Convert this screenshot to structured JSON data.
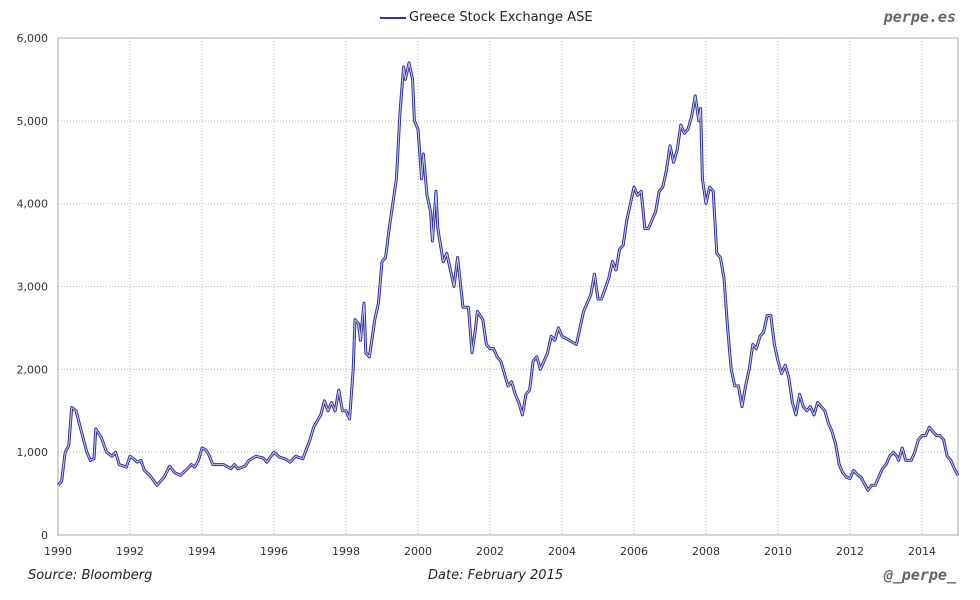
{
  "brand": "perpe.es",
  "handle": "@_perpe_",
  "source": "Source: Bloomberg",
  "date": "Date: February 2015",
  "chart_data": {
    "type": "line",
    "title": "",
    "xlabel": "",
    "ylabel": "",
    "xlim": [
      1990,
      2015
    ],
    "ylim": [
      0,
      6000
    ],
    "grid": true,
    "legend_position": "top-center",
    "x_ticks": [
      "1990",
      "1992",
      "1994",
      "1996",
      "1998",
      "2000",
      "2002",
      "2004",
      "2006",
      "2008",
      "2010",
      "2012",
      "2014"
    ],
    "y_ticks": [
      "0",
      "1,000",
      "2,000",
      "3,000",
      "4,000",
      "5,000",
      "6,000"
    ],
    "series": [
      {
        "name": "Greece Stock Exchange ASE",
        "color": "#33339a",
        "points": [
          [
            1990.0,
            600
          ],
          [
            1990.1,
            650
          ],
          [
            1990.2,
            1000
          ],
          [
            1990.3,
            1080
          ],
          [
            1990.38,
            1540
          ],
          [
            1990.5,
            1500
          ],
          [
            1990.65,
            1250
          ],
          [
            1990.8,
            1000
          ],
          [
            1990.9,
            900
          ],
          [
            1991.0,
            920
          ],
          [
            1991.05,
            1280
          ],
          [
            1991.2,
            1180
          ],
          [
            1991.35,
            1000
          ],
          [
            1991.5,
            950
          ],
          [
            1991.6,
            1000
          ],
          [
            1991.7,
            850
          ],
          [
            1991.9,
            820
          ],
          [
            1992.0,
            950
          ],
          [
            1992.1,
            920
          ],
          [
            1992.2,
            880
          ],
          [
            1992.3,
            900
          ],
          [
            1992.4,
            780
          ],
          [
            1992.55,
            720
          ],
          [
            1992.75,
            600
          ],
          [
            1992.95,
            700
          ],
          [
            1993.1,
            830
          ],
          [
            1993.25,
            750
          ],
          [
            1993.4,
            720
          ],
          [
            1993.6,
            800
          ],
          [
            1993.7,
            850
          ],
          [
            1993.8,
            820
          ],
          [
            1993.9,
            900
          ],
          [
            1994.0,
            1050
          ],
          [
            1994.1,
            1030
          ],
          [
            1994.2,
            960
          ],
          [
            1994.3,
            850
          ],
          [
            1994.6,
            850
          ],
          [
            1994.8,
            800
          ],
          [
            1994.9,
            850
          ],
          [
            1995.0,
            800
          ],
          [
            1995.2,
            830
          ],
          [
            1995.3,
            900
          ],
          [
            1995.5,
            950
          ],
          [
            1995.7,
            930
          ],
          [
            1995.8,
            880
          ],
          [
            1996.0,
            1000
          ],
          [
            1996.15,
            940
          ],
          [
            1996.3,
            920
          ],
          [
            1996.45,
            880
          ],
          [
            1996.6,
            950
          ],
          [
            1996.8,
            920
          ],
          [
            1997.0,
            1150
          ],
          [
            1997.1,
            1300
          ],
          [
            1997.3,
            1450
          ],
          [
            1997.4,
            1620
          ],
          [
            1997.5,
            1500
          ],
          [
            1997.6,
            1600
          ],
          [
            1997.7,
            1500
          ],
          [
            1997.8,
            1750
          ],
          [
            1997.9,
            1500
          ],
          [
            1998.0,
            1500
          ],
          [
            1998.1,
            1400
          ],
          [
            1998.2,
            2000
          ],
          [
            1998.25,
            2600
          ],
          [
            1998.35,
            2550
          ],
          [
            1998.4,
            2350
          ],
          [
            1998.5,
            2800
          ],
          [
            1998.55,
            2200
          ],
          [
            1998.65,
            2150
          ],
          [
            1998.8,
            2600
          ],
          [
            1998.9,
            2800
          ],
          [
            1999.0,
            3300
          ],
          [
            1999.1,
            3350
          ],
          [
            1999.2,
            3700
          ],
          [
            1999.3,
            4000
          ],
          [
            1999.4,
            4300
          ],
          [
            1999.5,
            5100
          ],
          [
            1999.6,
            5650
          ],
          [
            1999.65,
            5500
          ],
          [
            1999.75,
            5700
          ],
          [
            1999.85,
            5500
          ],
          [
            1999.9,
            5000
          ],
          [
            2000.0,
            4900
          ],
          [
            2000.1,
            4300
          ],
          [
            2000.15,
            4600
          ],
          [
            2000.25,
            4100
          ],
          [
            2000.35,
            3900
          ],
          [
            2000.4,
            3550
          ],
          [
            2000.5,
            4150
          ],
          [
            2000.55,
            3700
          ],
          [
            2000.7,
            3300
          ],
          [
            2000.8,
            3400
          ],
          [
            2000.9,
            3200
          ],
          [
            2001.0,
            3000
          ],
          [
            2001.1,
            3350
          ],
          [
            2001.25,
            2750
          ],
          [
            2001.4,
            2750
          ],
          [
            2001.5,
            2200
          ],
          [
            2001.6,
            2500
          ],
          [
            2001.65,
            2700
          ],
          [
            2001.8,
            2600
          ],
          [
            2001.9,
            2300
          ],
          [
            2002.0,
            2250
          ],
          [
            2002.1,
            2250
          ],
          [
            2002.2,
            2150
          ],
          [
            2002.3,
            2100
          ],
          [
            2002.4,
            1950
          ],
          [
            2002.5,
            1800
          ],
          [
            2002.6,
            1850
          ],
          [
            2002.7,
            1700
          ],
          [
            2002.8,
            1600
          ],
          [
            2002.9,
            1450
          ],
          [
            2003.0,
            1700
          ],
          [
            2003.1,
            1750
          ],
          [
            2003.2,
            2100
          ],
          [
            2003.3,
            2150
          ],
          [
            2003.4,
            2000
          ],
          [
            2003.5,
            2100
          ],
          [
            2003.6,
            2200
          ],
          [
            2003.7,
            2400
          ],
          [
            2003.8,
            2350
          ],
          [
            2003.9,
            2500
          ],
          [
            2004.0,
            2400
          ],
          [
            2004.2,
            2350
          ],
          [
            2004.4,
            2300
          ],
          [
            2004.5,
            2500
          ],
          [
            2004.6,
            2700
          ],
          [
            2004.8,
            2900
          ],
          [
            2004.9,
            3150
          ],
          [
            2005.0,
            2850
          ],
          [
            2005.1,
            2850
          ],
          [
            2005.3,
            3100
          ],
          [
            2005.4,
            3300
          ],
          [
            2005.5,
            3200
          ],
          [
            2005.6,
            3450
          ],
          [
            2005.7,
            3500
          ],
          [
            2005.8,
            3800
          ],
          [
            2005.9,
            4000
          ],
          [
            2006.0,
            4200
          ],
          [
            2006.1,
            4100
          ],
          [
            2006.2,
            4150
          ],
          [
            2006.3,
            3700
          ],
          [
            2006.4,
            3700
          ],
          [
            2006.5,
            3800
          ],
          [
            2006.6,
            3900
          ],
          [
            2006.7,
            4150
          ],
          [
            2006.8,
            4200
          ],
          [
            2006.9,
            4400
          ],
          [
            2007.0,
            4700
          ],
          [
            2007.1,
            4500
          ],
          [
            2007.2,
            4650
          ],
          [
            2007.3,
            4950
          ],
          [
            2007.4,
            4850
          ],
          [
            2007.5,
            4900
          ],
          [
            2007.6,
            5050
          ],
          [
            2007.7,
            5300
          ],
          [
            2007.8,
            5000
          ],
          [
            2007.85,
            5150
          ],
          [
            2007.9,
            4300
          ],
          [
            2008.0,
            4000
          ],
          [
            2008.1,
            4200
          ],
          [
            2008.2,
            4150
          ],
          [
            2008.3,
            3400
          ],
          [
            2008.4,
            3350
          ],
          [
            2008.5,
            3100
          ],
          [
            2008.6,
            2500
          ],
          [
            2008.7,
            2000
          ],
          [
            2008.8,
            1800
          ],
          [
            2008.9,
            1800
          ],
          [
            2009.0,
            1550
          ],
          [
            2009.1,
            1800
          ],
          [
            2009.2,
            2000
          ],
          [
            2009.3,
            2300
          ],
          [
            2009.4,
            2250
          ],
          [
            2009.5,
            2400
          ],
          [
            2009.6,
            2450
          ],
          [
            2009.7,
            2650
          ],
          [
            2009.8,
            2650
          ],
          [
            2009.9,
            2300
          ],
          [
            2010.0,
            2100
          ],
          [
            2010.1,
            1950
          ],
          [
            2010.2,
            2050
          ],
          [
            2010.3,
            1900
          ],
          [
            2010.4,
            1600
          ],
          [
            2010.5,
            1450
          ],
          [
            2010.6,
            1700
          ],
          [
            2010.7,
            1550
          ],
          [
            2010.8,
            1500
          ],
          [
            2010.9,
            1550
          ],
          [
            2011.0,
            1450
          ],
          [
            2011.1,
            1600
          ],
          [
            2011.2,
            1550
          ],
          [
            2011.3,
            1500
          ],
          [
            2011.4,
            1350
          ],
          [
            2011.5,
            1250
          ],
          [
            2011.6,
            1100
          ],
          [
            2011.7,
            850
          ],
          [
            2011.8,
            750
          ],
          [
            2011.9,
            700
          ],
          [
            2012.0,
            680
          ],
          [
            2012.1,
            780
          ],
          [
            2012.2,
            730
          ],
          [
            2012.3,
            700
          ],
          [
            2012.4,
            620
          ],
          [
            2012.5,
            540
          ],
          [
            2012.6,
            600
          ],
          [
            2012.7,
            600
          ],
          [
            2012.8,
            700
          ],
          [
            2012.9,
            800
          ],
          [
            2013.0,
            850
          ],
          [
            2013.1,
            950
          ],
          [
            2013.2,
            1000
          ],
          [
            2013.3,
            950
          ],
          [
            2013.35,
            900
          ],
          [
            2013.45,
            1050
          ],
          [
            2013.55,
            900
          ],
          [
            2013.7,
            900
          ],
          [
            2013.8,
            1000
          ],
          [
            2013.9,
            1150
          ],
          [
            2014.0,
            1200
          ],
          [
            2014.1,
            1200
          ],
          [
            2014.2,
            1300
          ],
          [
            2014.3,
            1250
          ],
          [
            2014.4,
            1200
          ],
          [
            2014.5,
            1200
          ],
          [
            2014.6,
            1150
          ],
          [
            2014.7,
            950
          ],
          [
            2014.8,
            900
          ],
          [
            2014.9,
            800
          ],
          [
            2015.0,
            720
          ]
        ]
      }
    ]
  }
}
